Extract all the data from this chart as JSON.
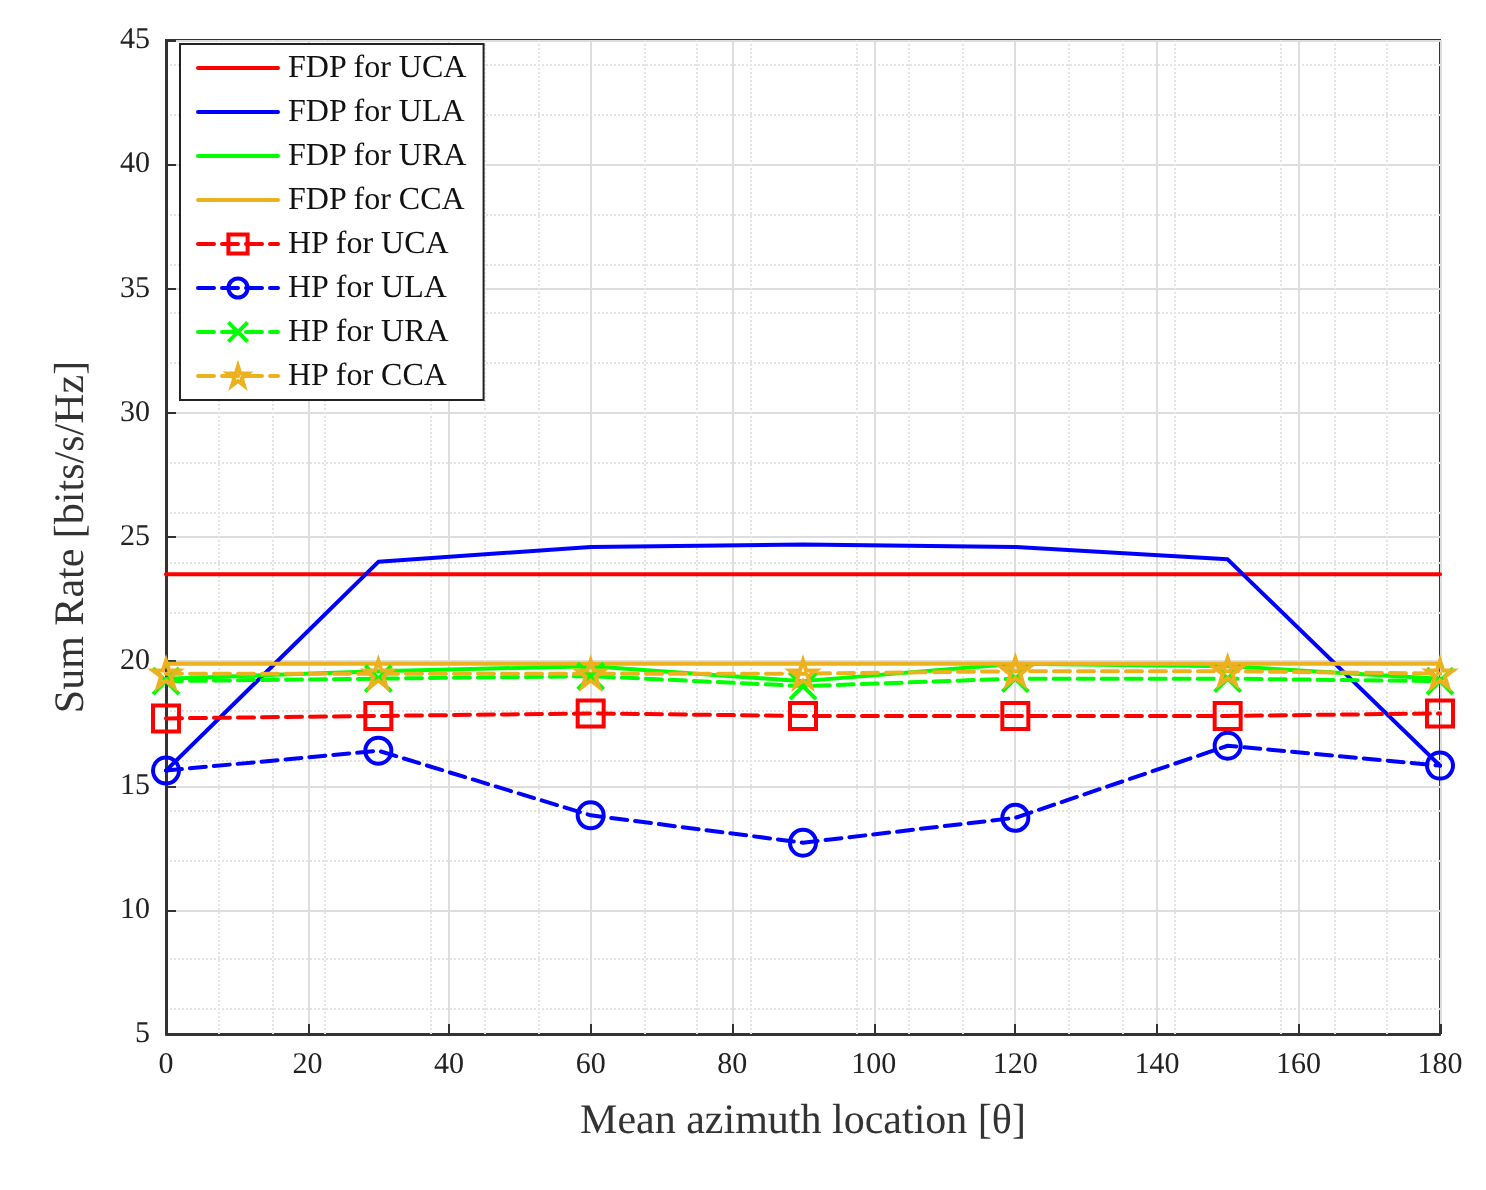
{
  "chart_data": {
    "type": "line",
    "xlabel": "Mean azimuth location [θ]",
    "ylabel": "Sum Rate [bits/s/Hz]",
    "x": [
      0,
      30,
      60,
      90,
      120,
      150,
      180
    ],
    "xlim": [
      0,
      180
    ],
    "xticks": [
      0,
      20,
      40,
      60,
      80,
      100,
      120,
      140,
      160,
      180
    ],
    "ylim": [
      5,
      45
    ],
    "yticks": [
      5,
      10,
      15,
      20,
      25,
      30,
      35,
      40,
      45
    ],
    "grid": true,
    "legend": "top left",
    "series": [
      {
        "name": "FDP for UCA",
        "color": "#ff0000",
        "marker": "none",
        "line_style": "solid",
        "values": [
          23.5,
          23.5,
          23.5,
          23.5,
          23.5,
          23.5,
          23.5
        ]
      },
      {
        "name": "FDP for ULA",
        "color": "#0000ff",
        "marker": "none",
        "line_style": "solid",
        "values": [
          15.6,
          24.0,
          24.6,
          24.7,
          24.6,
          24.1,
          15.8
        ]
      },
      {
        "name": "FDP for URA",
        "color": "#00ff00",
        "marker": "none",
        "line_style": "solid",
        "values": [
          19.3,
          19.6,
          19.8,
          19.2,
          19.9,
          19.8,
          19.3
        ]
      },
      {
        "name": "FDP for CCA",
        "color": "#edb120",
        "marker": "none",
        "line_style": "solid",
        "values": [
          19.9,
          19.9,
          19.9,
          19.9,
          19.9,
          19.9,
          19.9
        ]
      },
      {
        "name": "HP for UCA",
        "color": "#ff0000",
        "marker": "square",
        "line_style": "dashed",
        "values": [
          17.7,
          17.8,
          17.9,
          17.8,
          17.8,
          17.8,
          17.9
        ]
      },
      {
        "name": "HP for ULA",
        "color": "#0000ff",
        "marker": "circle",
        "line_style": "dashed",
        "values": [
          15.6,
          16.4,
          13.8,
          12.7,
          13.7,
          16.6,
          15.8
        ]
      },
      {
        "name": "HP for URA",
        "color": "#00ff00",
        "marker": "cross",
        "line_style": "dashed",
        "values": [
          19.2,
          19.3,
          19.4,
          19.0,
          19.3,
          19.3,
          19.2
        ]
      },
      {
        "name": "HP for CCA",
        "color": "#edb120",
        "marker": "star",
        "line_style": "dashed",
        "values": [
          19.5,
          19.5,
          19.5,
          19.5,
          19.6,
          19.6,
          19.5
        ]
      }
    ]
  }
}
